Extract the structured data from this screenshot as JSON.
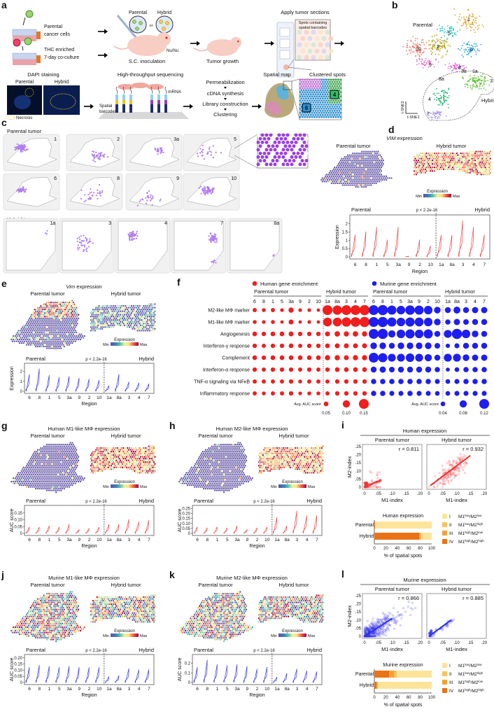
{
  "a": {
    "label": "a",
    "parental_cells": [
      "Parental",
      "cancer cells"
    ],
    "thc": [
      "THC enriched",
      "7-day co-culture"
    ],
    "parental": "Parental",
    "hybrid": "Hybrid",
    "or": "or",
    "nunu": "Nu/Nu",
    "inoculation": "S.C. inoculation",
    "growth": "Tumor growth",
    "apply": "Apply tumor sections",
    "spots": [
      "Spots containing",
      "spatial barcodes"
    ],
    "dapi": "DAPI staining",
    "dapi_parental": "Parental",
    "dapi_hybrid": "Hybrid",
    "necrosis": "Necrosis",
    "hts": "High-throughput sequencing",
    "mrna": "mRNA",
    "barcodes": [
      "Spatial",
      "barcodes"
    ],
    "steps": [
      "Permeabilization",
      "cDNA synthesis",
      "Library construction",
      "Clustering"
    ],
    "spatial_map": "Spatial map",
    "clustered": "Clustered spots",
    "spot_labels": [
      "6",
      "4"
    ]
  },
  "b": {
    "label": "b",
    "parental": "Parental",
    "hybrid": "Hybrid",
    "clusters": [
      "1",
      "5",
      "6",
      "10",
      "2",
      "9",
      "8",
      "3a",
      "1a",
      "3",
      "8a",
      "4",
      "7"
    ],
    "xaxis": "t-SNE1",
    "yaxis": "t-SNE2"
  },
  "c": {
    "label": "c",
    "parental": "Parental tumor",
    "hybrid": "Hybrid tumor",
    "parental_regions": [
      "1",
      "2",
      "3a",
      "5",
      "6",
      "8",
      "9",
      "10"
    ],
    "hybrid_regions": [
      "1a",
      "3",
      "4",
      "7",
      "8a"
    ]
  },
  "regions": [
    "6",
    "8",
    "1",
    "5",
    "3a",
    "9",
    "2",
    "10",
    "1a",
    "8a",
    "3",
    "4",
    "7"
  ],
  "common": {
    "parental_tumor": "Parental tumor",
    "hybrid_tumor": "Hybrid tumor",
    "parental": "Parental",
    "hybrid": "Hybrid",
    "expression": "Expression",
    "min": "Min",
    "max": "Max",
    "region": "Region",
    "pvalue": "p < 2.2e-16"
  },
  "d": {
    "label": "d",
    "gene": "VIM",
    "title_suffix": " expression",
    "ylabel": "Expression",
    "yticks": [
      "0",
      "0.5",
      "1",
      "1.5",
      "2"
    ],
    "ylim": [
      0,
      2.4
    ],
    "color": "#f04848",
    "violin_max": [
      1.4,
      1.6,
      1.9,
      1.1,
      1.9,
      0.05,
      1.1,
      0.7,
      1.4,
      1.4,
      2.3,
      1.9,
      1.4
    ]
  },
  "e": {
    "label": "e",
    "gene": "Vim",
    "title_suffix": " expression",
    "ylabel": "Expression",
    "yticks": [
      "0",
      "1",
      "2"
    ],
    "ylim": [
      0,
      2.6
    ],
    "color": "#3a3ae8",
    "violin_max": [
      1.8,
      2.4,
      1.7,
      1.5,
      1.6,
      1.4,
      1.3,
      1.2,
      0.6,
      1.8,
      1.0,
      0.9,
      0.8
    ]
  },
  "g": {
    "label": "g",
    "title": "Human M1-like MΦ expression",
    "ylabel": "AUC score",
    "yticks": [
      "0",
      "0.05",
      "0.10",
      "0.15"
    ],
    "ylim": [
      0,
      0.19
    ],
    "color": "#f04848",
    "violin_max": [
      0.05,
      0.05,
      0.06,
      0.05,
      0.07,
      0.03,
      0.04,
      0.05,
      0.07,
      0.07,
      0.11,
      0.09,
      0.1
    ]
  },
  "h": {
    "label": "h",
    "title": "Human M2-like MΦ expression",
    "ylabel": "AUC score",
    "yticks": [
      "0",
      "0.05",
      "0.10",
      "0.15",
      "0.20",
      "0.25"
    ],
    "ylim": [
      0,
      0.26
    ],
    "color": "#f04848",
    "violin_max": [
      0.07,
      0.06,
      0.07,
      0.06,
      0.08,
      0.04,
      0.06,
      0.07,
      0.17,
      0.08,
      0.24,
      0.19,
      0.19
    ]
  },
  "j": {
    "label": "j",
    "title": "Murine M1-like MΦ expression",
    "ylabel": "AUC score",
    "yticks": [
      "0",
      "0.05",
      "0.10",
      "0.15",
      "0.20"
    ],
    "ylim": [
      0,
      0.21
    ],
    "color": "#3a3ae8",
    "violin_max": [
      0.13,
      0.15,
      0.14,
      0.13,
      0.14,
      0.13,
      0.13,
      0.13,
      0.05,
      0.06,
      0.12,
      0.11,
      0.11
    ]
  },
  "k": {
    "label": "k",
    "title": "Murine M2-like MΦ expression",
    "ylabel": "AUC score",
    "yticks": [
      "0",
      "0.1",
      "0.2"
    ],
    "ylim": [
      0,
      0.27
    ],
    "color": "#3a3ae8",
    "violin_max": [
      0.17,
      0.25,
      0.2,
      0.19,
      0.2,
      0.18,
      0.15,
      0.17,
      0.06,
      0.1,
      0.15,
      0.13,
      0.12
    ]
  },
  "f": {
    "label": "f",
    "human_legend": "Human gene enrichment",
    "murine_legend": "Murine gene enrichment",
    "human_color": "#f21d1d",
    "murine_color": "#1e1ef0",
    "groups": [
      "Parental tumor",
      "Hybrid tumor",
      "Parental tumor",
      "Hybrid tumor"
    ],
    "columns": [
      "6",
      "8",
      "1",
      "5",
      "3a",
      "9",
      "2",
      "10",
      "1a",
      "8a",
      "3",
      "4",
      "7"
    ],
    "rows": [
      "M2-like MΦ marker",
      "M1-like MΦ marker",
      "Angiogenesis",
      "Interferon-γ response",
      "Complement",
      "Interferon-α response",
      "TNF-α signaling via NFκB",
      "Inflammatory response"
    ],
    "human_auc": [
      [
        0.04,
        0.035,
        0.04,
        0.03,
        0.06,
        0.03,
        0.03,
        0.025,
        0.15,
        0.14,
        0.15,
        0.15,
        0.155
      ],
      [
        0.035,
        0.03,
        0.035,
        0.025,
        0.055,
        0.025,
        0.03,
        0.025,
        0.13,
        0.13,
        0.14,
        0.145,
        0.155
      ],
      [
        0.05,
        0.045,
        0.05,
        0.05,
        0.055,
        0.045,
        0.045,
        0.045,
        0.055,
        0.065,
        0.06,
        0.065,
        0.06
      ],
      [
        0.045,
        0.04,
        0.045,
        0.045,
        0.05,
        0.04,
        0.045,
        0.045,
        0.05,
        0.055,
        0.055,
        0.055,
        0.055
      ],
      [
        0.05,
        0.045,
        0.05,
        0.05,
        0.05,
        0.05,
        0.05,
        0.05,
        0.06,
        0.06,
        0.055,
        0.06,
        0.06
      ],
      [
        0.045,
        0.04,
        0.045,
        0.045,
        0.045,
        0.04,
        0.045,
        0.04,
        0.045,
        0.05,
        0.05,
        0.05,
        0.05
      ],
      [
        0.04,
        0.04,
        0.04,
        0.04,
        0.045,
        0.035,
        0.04,
        0.04,
        0.04,
        0.045,
        0.045,
        0.045,
        0.045
      ],
      [
        0.04,
        0.035,
        0.04,
        0.04,
        0.045,
        0.03,
        0.035,
        0.035,
        0.04,
        0.045,
        0.045,
        0.045,
        0.045
      ]
    ],
    "murine_auc": [
      [
        0.12,
        0.125,
        0.11,
        0.1,
        0.115,
        0.11,
        0.1,
        0.07,
        0.06,
        0.075,
        0.06,
        0.065,
        0.065
      ],
      [
        0.12,
        0.125,
        0.11,
        0.1,
        0.11,
        0.105,
        0.1,
        0.07,
        0.05,
        0.065,
        0.055,
        0.06,
        0.06
      ],
      [
        0.12,
        0.125,
        0.08,
        0.1,
        0.11,
        0.1,
        0.11,
        0.06,
        0.09,
        0.125,
        0.1,
        0.07,
        0.06
      ],
      [
        0.07,
        0.07,
        0.06,
        0.07,
        0.07,
        0.07,
        0.07,
        0.055,
        0.035,
        0.045,
        0.06,
        0.06,
        0.06
      ],
      [
        0.12,
        0.11,
        0.09,
        0.09,
        0.1,
        0.09,
        0.08,
        0.06,
        0.09,
        0.09,
        0.07,
        0.065,
        0.065
      ],
      [
        0.06,
        0.065,
        0.055,
        0.06,
        0.06,
        0.06,
        0.06,
        0.05,
        0.03,
        0.04,
        0.05,
        0.05,
        0.05
      ],
      [
        0.05,
        0.05,
        0.05,
        0.05,
        0.05,
        0.05,
        0.05,
        0.045,
        0.04,
        0.045,
        0.05,
        0.05,
        0.05
      ],
      [
        0.05,
        0.05,
        0.045,
        0.045,
        0.05,
        0.045,
        0.045,
        0.04,
        0.04,
        0.045,
        0.045,
        0.045,
        0.045
      ]
    ],
    "avg_label": "Avg. AUC score",
    "human_scale": [
      "0.05",
      "0.10",
      "0.15"
    ],
    "murine_scale": [
      "0.04",
      "0.08",
      "0.12"
    ]
  },
  "quadrant_colors": [
    "#fde49a",
    "#fbc35a",
    "#f7a133",
    "#ea7317"
  ],
  "quadrants": [
    {
      "num": "I",
      "m1": "M1",
      "s1": "low",
      "m2": "/M2",
      "s2": "low"
    },
    {
      "num": "II",
      "m1": "M1",
      "s1": "low",
      "m2": "/M2",
      "s2": "high"
    },
    {
      "num": "III",
      "m1": "M1",
      "s1": "high",
      "m2": "/M2",
      "s2": "low"
    },
    {
      "num": "IV",
      "m1": "M1",
      "s1": "high",
      "m2": "/M2",
      "s2": "high"
    }
  ],
  "i": {
    "label": "i",
    "title": "Human expression",
    "color": "#f03030",
    "panels": [
      {
        "title": "Parental tumor",
        "r": "r = 0.811",
        "fit_line": [
          [
            0,
            0
          ],
          [
            0.06,
            0.045
          ]
        ]
      },
      {
        "title": "Hybrid tumor",
        "r": "r = 0.932",
        "fit_line": [
          [
            0.005,
            0.01
          ],
          [
            0.15,
            0.195
          ]
        ]
      }
    ],
    "xlabel": "M1-index",
    "ylabel": "M2-index",
    "xticks": [
      "0",
      ".05",
      ".10",
      ".15",
      ".20"
    ],
    "yticks": [
      "0",
      ".05",
      ".10",
      ".15",
      ".20",
      ".25"
    ],
    "bar_title": "Human expression",
    "bar_xlabel": "% of spatial spots",
    "bar_xticks": [
      "0",
      "20",
      "40",
      "60",
      "80",
      "100"
    ],
    "bars": [
      {
        "name": "Parental",
        "values": [
          98.5,
          0,
          0,
          1.5
        ]
      },
      {
        "name": "Hybrid",
        "values": [
          19,
          0,
          3,
          78
        ]
      }
    ]
  },
  "l": {
    "label": "l",
    "title": "Murine expression",
    "color": "#3030e8",
    "panels": [
      {
        "title": "Parental tumor",
        "r": "r = 0.866",
        "fit_line": [
          [
            0,
            0
          ],
          [
            0.1,
            0.11
          ]
        ]
      },
      {
        "title": "Hybrid tumor",
        "r": "r = 0.885",
        "fit_line": [
          [
            0,
            0
          ],
          [
            0.08,
            0.1
          ]
        ]
      }
    ],
    "xlabel": "M1-index",
    "ylabel": "M2-index",
    "xticks": [
      "0",
      ".05",
      ".10",
      ".15",
      ".20"
    ],
    "yticks": [
      "0",
      ".05",
      ".10",
      ".15",
      ".20",
      ".25"
    ],
    "bar_title": "Murine expression",
    "bar_xlabel": "% of spatial spots",
    "bar_xticks": [
      "0",
      "20",
      "40",
      "60",
      "80",
      "100"
    ],
    "bars": [
      {
        "name": "Parental",
        "values": [
          61,
          4,
          9,
          26
        ]
      },
      {
        "name": "Hybrid",
        "values": [
          94,
          0,
          2,
          4
        ]
      }
    ]
  }
}
